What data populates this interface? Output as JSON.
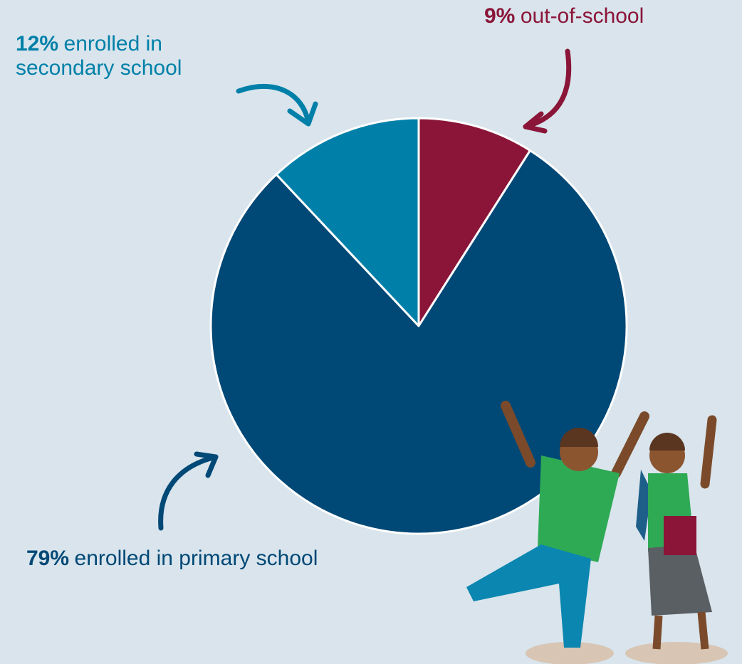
{
  "chart_data": {
    "type": "pie",
    "categories": [
      "out-of-school",
      "enrolled in primary school",
      "enrolled in secondary school"
    ],
    "values": [
      9,
      79,
      12
    ],
    "value_labels": [
      "9%",
      "79%",
      "12%"
    ],
    "colors": [
      "#8a1538",
      "#004876",
      "#0080a8"
    ]
  }
}
